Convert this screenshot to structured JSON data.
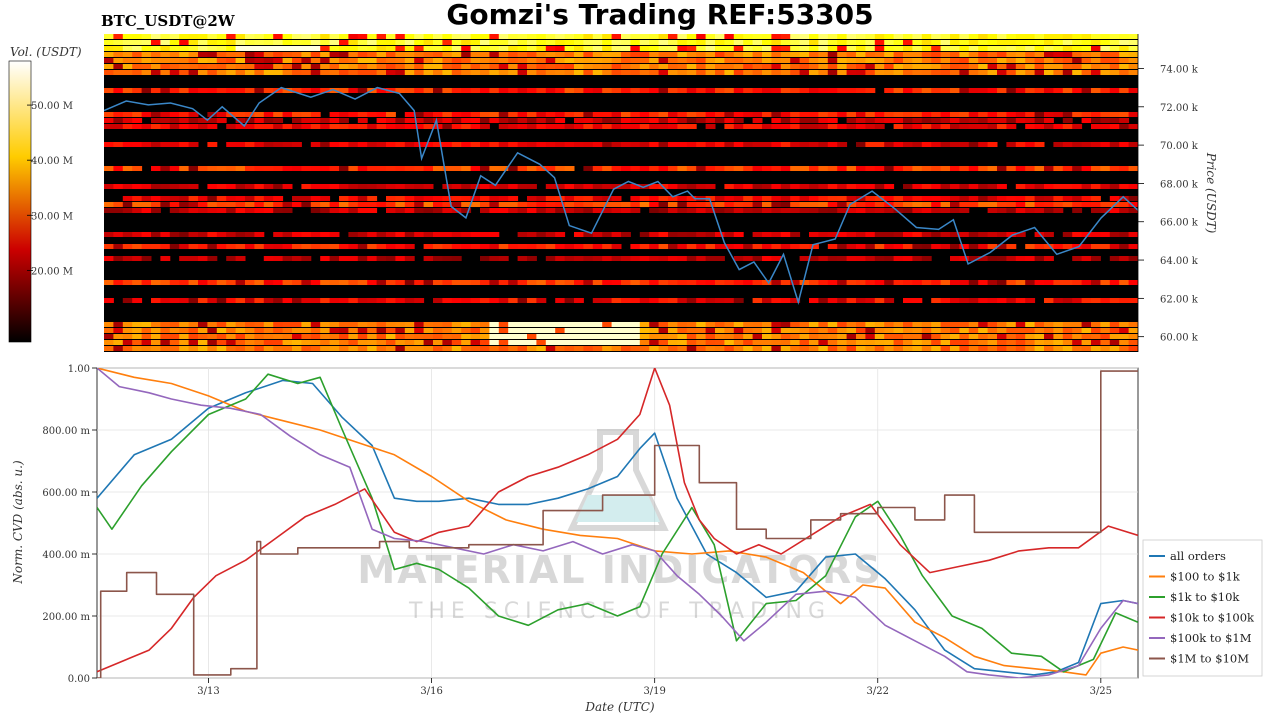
{
  "header": {
    "title": "Gomzi's Trading REF:53305",
    "symbol": "BTC_USDT@2W"
  },
  "watermark": {
    "line1": "MATERIAL INDICATORS",
    "line2": "THE SCIENCE OF TRADING"
  },
  "chart_data": [
    {
      "type": "heatmap",
      "name": "order-book-heatmap",
      "colorbar_label": "Vol. (USDT)",
      "colorbar_ticks": [
        "50.00 M",
        "40.00 M",
        "30.00 M",
        "20.00 M"
      ],
      "colorbar_values": [
        50,
        40,
        30,
        20
      ],
      "colorbar_range": [
        7,
        58
      ],
      "colormap": "hot",
      "ylabel": "Price (USDT)",
      "ylim": [
        59200,
        75800
      ],
      "yticks": [
        60000,
        62000,
        64000,
        66000,
        68000,
        70000,
        72000,
        74000
      ],
      "ytick_labels": [
        "60.00 k",
        "62.00 k",
        "64.00 k",
        "66.00 k",
        "68.00 k",
        "70.00 k",
        "72.00 k",
        "74.00 k"
      ],
      "xlim": [
        0,
        14
      ],
      "price_line": {
        "color": "#3a87c8",
        "x": [
          0,
          0.3,
          0.6,
          0.9,
          1.2,
          1.4,
          1.6,
          1.9,
          2.1,
          2.4,
          2.8,
          3.1,
          3.4,
          3.7,
          4.0,
          4.2,
          4.3,
          4.5,
          4.7,
          4.9,
          5.1,
          5.3,
          5.6,
          5.9,
          6.1,
          6.3,
          6.6,
          6.9,
          7.1,
          7.3,
          7.5,
          7.7,
          7.9,
          8.0,
          8.2,
          8.4,
          8.6,
          8.8,
          9.0,
          9.2,
          9.4,
          9.6,
          9.9,
          10.1,
          10.4,
          10.7,
          11.0,
          11.3,
          11.5,
          11.7,
          12.0,
          12.3,
          12.6,
          12.9,
          13.2,
          13.5,
          13.8,
          14.0
        ],
        "y": [
          71800,
          72300,
          72100,
          72200,
          71900,
          71300,
          72000,
          71000,
          72200,
          73000,
          72500,
          72900,
          72400,
          73000,
          72700,
          71800,
          69300,
          71300,
          66800,
          66200,
          68400,
          67900,
          69600,
          69000,
          68300,
          65800,
          65400,
          67700,
          68100,
          67800,
          68100,
          67300,
          67600,
          67200,
          67200,
          64900,
          63500,
          63900,
          62800,
          64300,
          61800,
          64800,
          65100,
          66900,
          67600,
          66700,
          65700,
          65600,
          66100,
          63800,
          64400,
          65300,
          65700,
          64300,
          64700,
          66200,
          67300,
          66600
        ]
      }
    },
    {
      "type": "line",
      "name": "normalized-cvd",
      "xlabel": "Date (UTC)",
      "ylabel": "Norm. CVD (abs. u.)",
      "ylim": [
        0,
        1
      ],
      "xlim": [
        0,
        14
      ],
      "yticks": [
        0,
        0.2,
        0.4,
        0.6,
        0.8,
        1.0
      ],
      "ytick_labels": [
        "0.00",
        "200.00 m",
        "400.00 m",
        "600.00 m",
        "800.00 m",
        "1.00"
      ],
      "xticks": [
        1.5,
        4.5,
        7.5,
        10.5,
        13.5
      ],
      "xtick_labels": [
        "3/13",
        "3/16",
        "3/19",
        "3/22",
        "3/25"
      ],
      "legend_position": "right",
      "series": [
        {
          "name": "all orders",
          "color": "#1f77b4",
          "x": [
            0,
            0.5,
            1.0,
            1.5,
            2.0,
            2.5,
            2.9,
            3.3,
            3.7,
            4.0,
            4.3,
            4.6,
            5.0,
            5.4,
            5.8,
            6.2,
            6.6,
            7.0,
            7.3,
            7.5,
            7.8,
            8.2,
            8.6,
            9.0,
            9.4,
            9.8,
            10.2,
            10.6,
            11.0,
            11.4,
            11.8,
            12.2,
            12.6,
            12.9,
            13.2,
            13.5,
            13.8,
            14.0
          ],
          "y": [
            0.58,
            0.72,
            0.77,
            0.87,
            0.92,
            0.96,
            0.95,
            0.84,
            0.75,
            0.58,
            0.57,
            0.57,
            0.58,
            0.56,
            0.56,
            0.58,
            0.61,
            0.65,
            0.74,
            0.79,
            0.58,
            0.4,
            0.34,
            0.26,
            0.28,
            0.39,
            0.4,
            0.32,
            0.22,
            0.09,
            0.03,
            0.02,
            0.01,
            0.02,
            0.05,
            0.24,
            0.25,
            0.24
          ]
        },
        {
          "name": "$100 to $1k",
          "color": "#ff7f0e",
          "x": [
            0,
            0.5,
            1.0,
            1.5,
            2.0,
            2.5,
            3.0,
            3.5,
            4.0,
            4.5,
            5.0,
            5.5,
            6.0,
            6.5,
            7.0,
            7.5,
            8.0,
            8.5,
            9.0,
            9.5,
            10.0,
            10.3,
            10.6,
            11.0,
            11.4,
            11.8,
            12.2,
            12.6,
            13.0,
            13.3,
            13.5,
            13.8,
            14.0
          ],
          "y": [
            1.0,
            0.97,
            0.95,
            0.91,
            0.86,
            0.83,
            0.8,
            0.76,
            0.72,
            0.65,
            0.57,
            0.51,
            0.48,
            0.46,
            0.45,
            0.41,
            0.4,
            0.41,
            0.39,
            0.34,
            0.24,
            0.3,
            0.29,
            0.18,
            0.13,
            0.07,
            0.04,
            0.03,
            0.02,
            0.01,
            0.08,
            0.1,
            0.09
          ]
        },
        {
          "name": "$1k to $10k",
          "color": "#2ca02c",
          "x": [
            0,
            0.2,
            0.6,
            1.0,
            1.5,
            2.0,
            2.3,
            2.7,
            3.0,
            3.3,
            3.7,
            4.0,
            4.3,
            4.6,
            5.0,
            5.4,
            5.8,
            6.2,
            6.6,
            7.0,
            7.3,
            7.6,
            8.0,
            8.3,
            8.6,
            9.0,
            9.4,
            9.8,
            10.2,
            10.5,
            10.8,
            11.1,
            11.5,
            11.9,
            12.3,
            12.7,
            13.0,
            13.4,
            13.7,
            14.0
          ],
          "y": [
            0.55,
            0.48,
            0.62,
            0.73,
            0.85,
            0.9,
            0.98,
            0.95,
            0.97,
            0.8,
            0.58,
            0.35,
            0.37,
            0.35,
            0.29,
            0.2,
            0.17,
            0.22,
            0.24,
            0.2,
            0.23,
            0.4,
            0.55,
            0.43,
            0.12,
            0.24,
            0.25,
            0.33,
            0.52,
            0.57,
            0.46,
            0.33,
            0.2,
            0.16,
            0.08,
            0.07,
            0.02,
            0.06,
            0.21,
            0.18
          ]
        },
        {
          "name": "$10k to $100k",
          "color": "#d62728",
          "x": [
            0,
            0.3,
            0.7,
            1.0,
            1.3,
            1.6,
            2.0,
            2.4,
            2.8,
            3.2,
            3.6,
            4.0,
            4.3,
            4.6,
            5.0,
            5.4,
            5.8,
            6.2,
            6.6,
            7.0,
            7.3,
            7.5,
            7.7,
            7.9,
            8.1,
            8.3,
            8.6,
            8.9,
            9.2,
            9.6,
            10.0,
            10.4,
            10.8,
            11.2,
            11.6,
            12.0,
            12.4,
            12.8,
            13.2,
            13.6,
            14.0
          ],
          "y": [
            0.02,
            0.05,
            0.09,
            0.16,
            0.26,
            0.33,
            0.38,
            0.45,
            0.52,
            0.56,
            0.61,
            0.47,
            0.44,
            0.47,
            0.49,
            0.6,
            0.65,
            0.68,
            0.72,
            0.77,
            0.85,
            1.0,
            0.88,
            0.63,
            0.51,
            0.45,
            0.4,
            0.43,
            0.4,
            0.46,
            0.52,
            0.56,
            0.43,
            0.34,
            0.36,
            0.38,
            0.41,
            0.42,
            0.42,
            0.49,
            0.46
          ]
        },
        {
          "name": "$100k to $1M",
          "color": "#9467bd",
          "x": [
            0,
            0.3,
            0.7,
            1.0,
            1.4,
            1.8,
            2.2,
            2.6,
            3.0,
            3.4,
            3.7,
            4.0,
            4.4,
            4.8,
            5.2,
            5.6,
            6.0,
            6.4,
            6.8,
            7.2,
            7.5,
            7.8,
            8.1,
            8.4,
            8.7,
            9.0,
            9.4,
            9.8,
            10.2,
            10.6,
            11.0,
            11.4,
            11.7,
            12.0,
            12.4,
            12.8,
            13.2,
            13.5,
            13.8,
            14.0
          ],
          "y": [
            1.0,
            0.94,
            0.92,
            0.9,
            0.88,
            0.87,
            0.85,
            0.78,
            0.72,
            0.68,
            0.48,
            0.45,
            0.44,
            0.42,
            0.4,
            0.43,
            0.41,
            0.44,
            0.4,
            0.43,
            0.41,
            0.33,
            0.27,
            0.2,
            0.12,
            0.18,
            0.27,
            0.28,
            0.26,
            0.17,
            0.12,
            0.07,
            0.02,
            0.01,
            0.0,
            0.01,
            0.04,
            0.16,
            0.25,
            0.24
          ]
        },
        {
          "name": "$1M to $10M",
          "color": "#8c564b",
          "step": true,
          "x": [
            0,
            0.05,
            0.4,
            0.8,
            1.3,
            1.8,
            2.15,
            2.2,
            2.7,
            3.2,
            3.8,
            4.2,
            5.0,
            6.0,
            6.8,
            7.5,
            8.1,
            8.6,
            9.0,
            9.6,
            10.0,
            10.5,
            11.0,
            11.4,
            11.8,
            12.6,
            13.4,
            13.5,
            14.0
          ],
          "y": [
            0.0,
            0.28,
            0.34,
            0.27,
            0.01,
            0.03,
            0.44,
            0.4,
            0.42,
            0.42,
            0.44,
            0.42,
            0.43,
            0.54,
            0.59,
            0.75,
            0.63,
            0.48,
            0.45,
            0.51,
            0.53,
            0.55,
            0.51,
            0.59,
            0.47,
            0.47,
            0.47,
            0.99,
            0.99
          ]
        }
      ]
    }
  ]
}
